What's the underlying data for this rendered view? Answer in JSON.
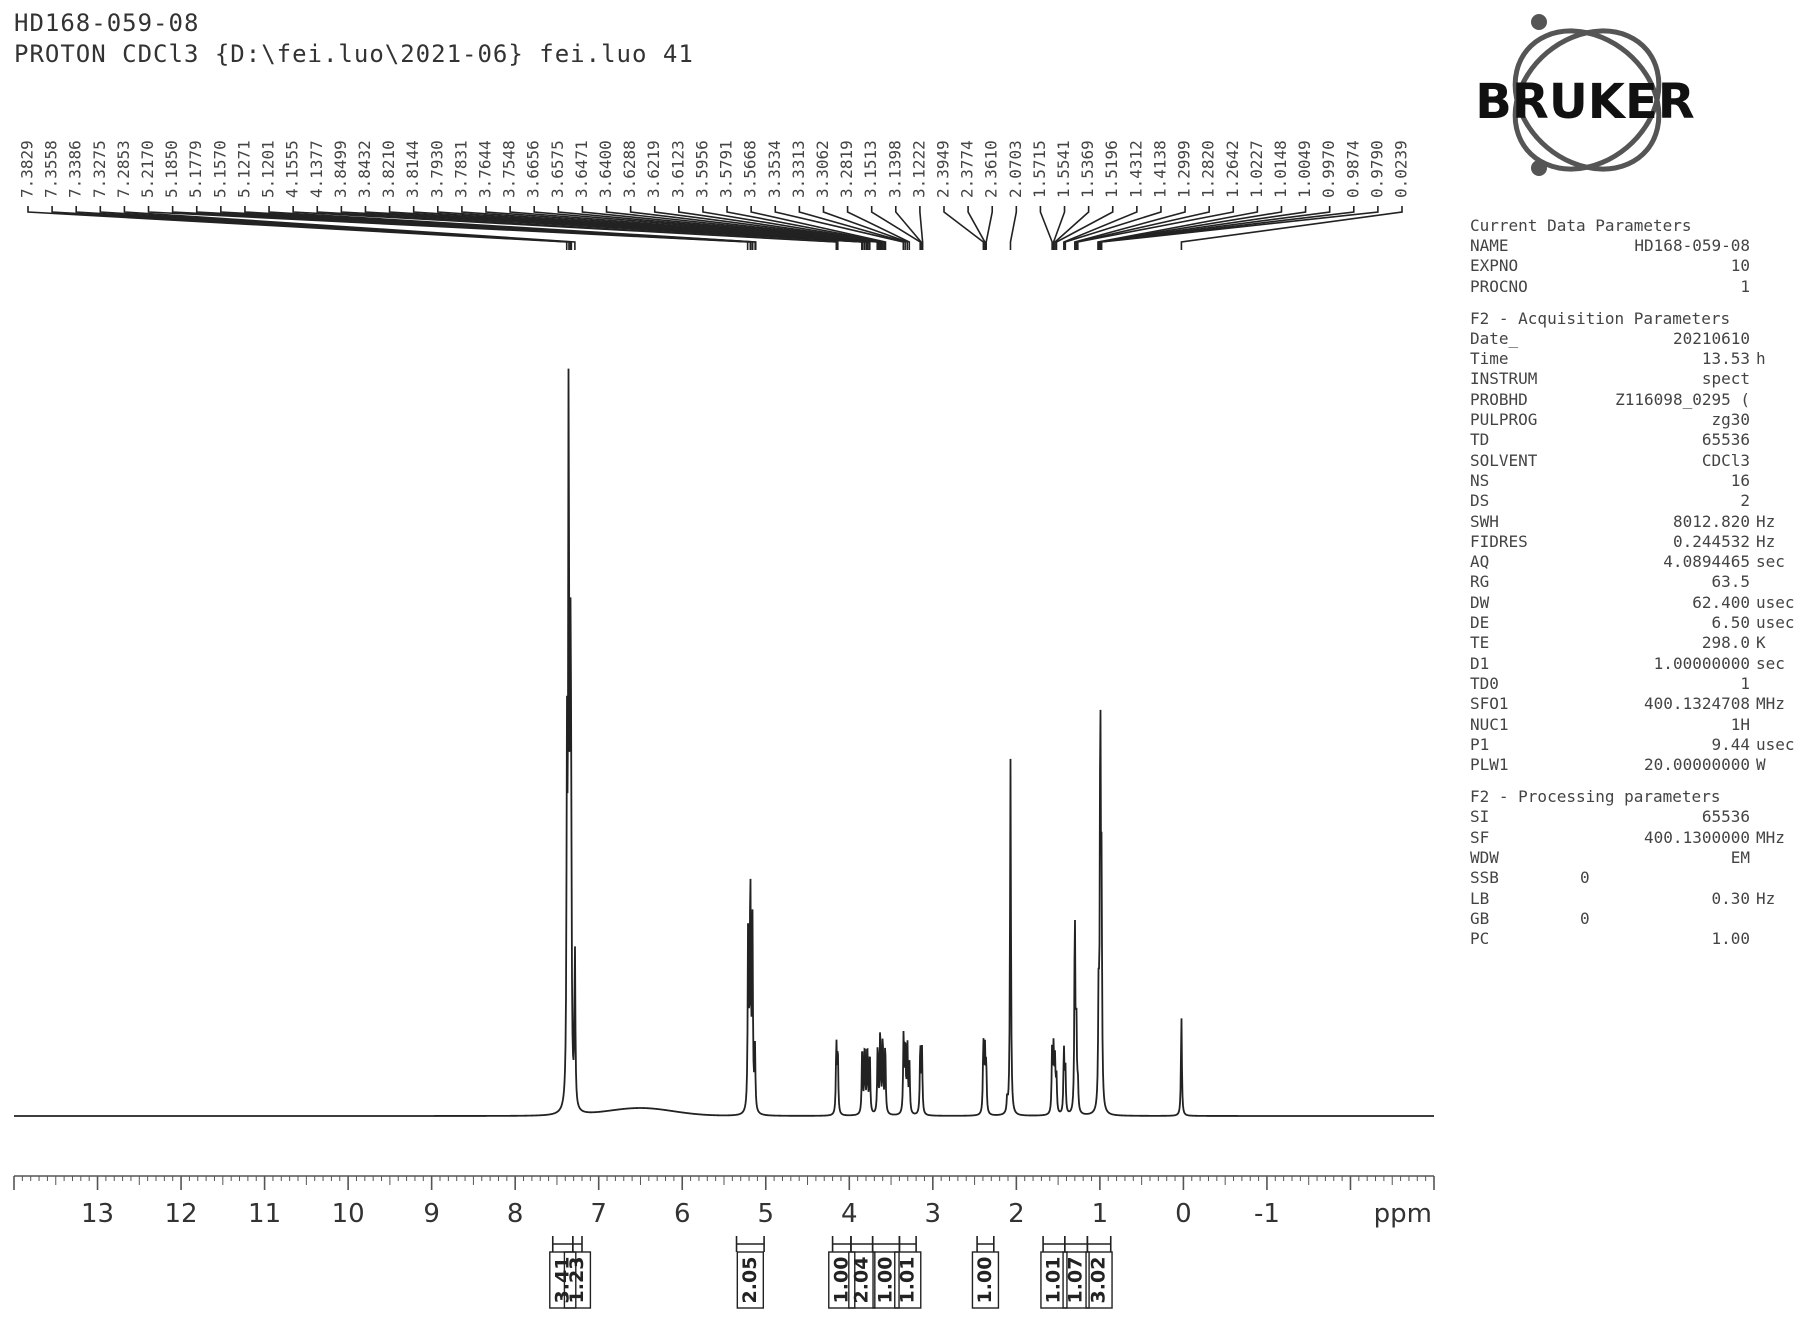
{
  "header": {
    "title": "HD168-059-08",
    "subtitle": "PROTON CDCl3 {D:\\fei.luo\\2021-06} fei.luo 41"
  },
  "logo": {
    "text": "BRUKER"
  },
  "parameters": [
    {
      "title": "Current Data Parameters",
      "rows": [
        {
          "name": "NAME",
          "value": "HD168-059-08",
          "unit": ""
        },
        {
          "name": "EXPNO",
          "value": "10",
          "unit": ""
        },
        {
          "name": "PROCNO",
          "value": "1",
          "unit": ""
        }
      ]
    },
    {
      "title": "F2 - Acquisition Parameters",
      "rows": [
        {
          "name": "Date_",
          "value": "20210610",
          "unit": ""
        },
        {
          "name": "Time",
          "value": "13.53",
          "unit": "h"
        },
        {
          "name": "INSTRUM",
          "value": "spect",
          "unit": ""
        },
        {
          "name": "PROBHD",
          "value": "Z116098_0295 (",
          "unit": ""
        },
        {
          "name": "PULPROG",
          "value": "zg30",
          "unit": ""
        },
        {
          "name": "TD",
          "value": "65536",
          "unit": ""
        },
        {
          "name": "SOLVENT",
          "value": "CDCl3",
          "unit": ""
        },
        {
          "name": "NS",
          "value": "16",
          "unit": ""
        },
        {
          "name": "DS",
          "value": "2",
          "unit": ""
        },
        {
          "name": "SWH",
          "value": "8012.820",
          "unit": "Hz"
        },
        {
          "name": "FIDRES",
          "value": "0.244532",
          "unit": "Hz"
        },
        {
          "name": "AQ",
          "value": "4.0894465",
          "unit": "sec"
        },
        {
          "name": "RG",
          "value": "63.5",
          "unit": ""
        },
        {
          "name": "DW",
          "value": "62.400",
          "unit": "usec"
        },
        {
          "name": "DE",
          "value": "6.50",
          "unit": "usec"
        },
        {
          "name": "TE",
          "value": "298.0",
          "unit": "K"
        },
        {
          "name": "D1",
          "value": "1.00000000",
          "unit": "sec"
        },
        {
          "name": "TD0",
          "value": "1",
          "unit": ""
        },
        {
          "name": "SFO1",
          "value": "400.1324708",
          "unit": "MHz"
        },
        {
          "name": "NUC1",
          "value": "1H",
          "unit": ""
        },
        {
          "name": "P1",
          "value": "9.44",
          "unit": "usec"
        },
        {
          "name": "PLW1",
          "value": "20.00000000",
          "unit": "W"
        }
      ]
    },
    {
      "title": "F2 - Processing parameters",
      "rows": [
        {
          "name": "SI",
          "value": "65536",
          "unit": ""
        },
        {
          "name": "SF",
          "value": "400.1300000",
          "unit": "MHz"
        },
        {
          "name": "WDW",
          "value": "EM",
          "unit": ""
        },
        {
          "name": "SSB",
          "value": "0",
          "unit": "",
          "left": true
        },
        {
          "name": "LB",
          "value": "0.30",
          "unit": "Hz"
        },
        {
          "name": "GB",
          "value": "0",
          "unit": "",
          "left": true
        },
        {
          "name": "PC",
          "value": "1.00",
          "unit": ""
        }
      ]
    }
  ],
  "chart_data": {
    "type": "line",
    "title": "",
    "xlabel": "ppm",
    "ylabel": "",
    "xlim": [
      14.0,
      -3.0
    ],
    "x_reversed": true,
    "x_ticks": [
      13,
      12,
      11,
      10,
      9,
      8,
      7,
      6,
      5,
      4,
      3,
      2,
      1,
      0,
      -1
    ],
    "peak_labels": [
      "7.3829",
      "7.3558",
      "7.3386",
      "7.3275",
      "7.2853",
      "5.2170",
      "5.1850",
      "5.1779",
      "5.1570",
      "5.1271",
      "5.1201",
      "4.1555",
      "4.1377",
      "3.8499",
      "3.8432",
      "3.8210",
      "3.8144",
      "3.7930",
      "3.7831",
      "3.7644",
      "3.7548",
      "3.6656",
      "3.6575",
      "3.6471",
      "3.6400",
      "3.6288",
      "3.6219",
      "3.6123",
      "3.5956",
      "3.5791",
      "3.5668",
      "3.3534",
      "3.3313",
      "3.3062",
      "3.2819",
      "3.1513",
      "3.1398",
      "3.1222",
      "2.3949",
      "2.3774",
      "2.3610",
      "2.0703",
      "1.5715",
      "1.5541",
      "1.5369",
      "1.5196",
      "1.4312",
      "1.4138",
      "1.2999",
      "1.2820",
      "1.2642",
      "1.0227",
      "1.0148",
      "1.0049",
      "0.9970",
      "0.9874",
      "0.9790",
      "0.0239"
    ],
    "peaks": [
      {
        "x": 7.38,
        "h": 0.47
      },
      {
        "x": 7.36,
        "h": 0.99
      },
      {
        "x": 7.34,
        "h": 0.55
      },
      {
        "x": 7.33,
        "h": 0.35
      },
      {
        "x": 7.285,
        "h": 0.22
      },
      {
        "x": 5.21,
        "h": 0.29
      },
      {
        "x": 5.185,
        "h": 0.33
      },
      {
        "x": 5.16,
        "h": 0.27
      },
      {
        "x": 5.13,
        "h": 0.09
      },
      {
        "x": 4.155,
        "h": 0.1
      },
      {
        "x": 4.138,
        "h": 0.09
      },
      {
        "x": 3.845,
        "h": 0.1
      },
      {
        "x": 3.815,
        "h": 0.1
      },
      {
        "x": 3.785,
        "h": 0.1
      },
      {
        "x": 3.755,
        "h": 0.09
      },
      {
        "x": 3.66,
        "h": 0.1
      },
      {
        "x": 3.63,
        "h": 0.12
      },
      {
        "x": 3.6,
        "h": 0.11
      },
      {
        "x": 3.57,
        "h": 0.1
      },
      {
        "x": 3.35,
        "h": 0.11
      },
      {
        "x": 3.33,
        "h": 0.1
      },
      {
        "x": 3.305,
        "h": 0.1
      },
      {
        "x": 3.28,
        "h": 0.07
      },
      {
        "x": 3.15,
        "h": 0.1
      },
      {
        "x": 3.13,
        "h": 0.09
      },
      {
        "x": 2.395,
        "h": 0.1
      },
      {
        "x": 2.377,
        "h": 0.09
      },
      {
        "x": 2.361,
        "h": 0.07
      },
      {
        "x": 2.11,
        "h": 0.02
      },
      {
        "x": 2.0703,
        "h": 0.5
      },
      {
        "x": 1.572,
        "h": 0.09
      },
      {
        "x": 1.554,
        "h": 0.09
      },
      {
        "x": 1.537,
        "h": 0.07
      },
      {
        "x": 1.52,
        "h": 0.05
      },
      {
        "x": 1.431,
        "h": 0.09
      },
      {
        "x": 1.414,
        "h": 0.07
      },
      {
        "x": 1.3,
        "h": 0.28
      },
      {
        "x": 1.282,
        "h": 0.13
      },
      {
        "x": 1.264,
        "h": 0.04
      },
      {
        "x": 1.015,
        "h": 0.16
      },
      {
        "x": 0.995,
        "h": 0.56
      },
      {
        "x": 0.98,
        "h": 0.3
      },
      {
        "x": 0.0239,
        "h": 0.14
      }
    ],
    "broad_features": [
      {
        "x": 6.5,
        "h": 0.011,
        "w": 0.55
      }
    ],
    "integrals": [
      {
        "from": 7.55,
        "to": 7.31,
        "value": "3.41"
      },
      {
        "from": 7.31,
        "to": 7.2,
        "value": "1.23"
      },
      {
        "from": 5.35,
        "to": 5.02,
        "value": "2.05"
      },
      {
        "from": 4.2,
        "to": 3.98,
        "value": "1.00"
      },
      {
        "from": 3.98,
        "to": 3.72,
        "value": "2.04"
      },
      {
        "from": 3.72,
        "to": 3.4,
        "value": "1.00"
      },
      {
        "from": 3.4,
        "to": 3.2,
        "value": "1.01"
      },
      {
        "from": 2.47,
        "to": 2.27,
        "value": "1.00"
      },
      {
        "from": 1.68,
        "to": 1.42,
        "value": "1.01"
      },
      {
        "from": 1.42,
        "to": 1.15,
        "value": "1.07"
      },
      {
        "from": 1.15,
        "to": 0.87,
        "value": "3.02"
      }
    ]
  }
}
